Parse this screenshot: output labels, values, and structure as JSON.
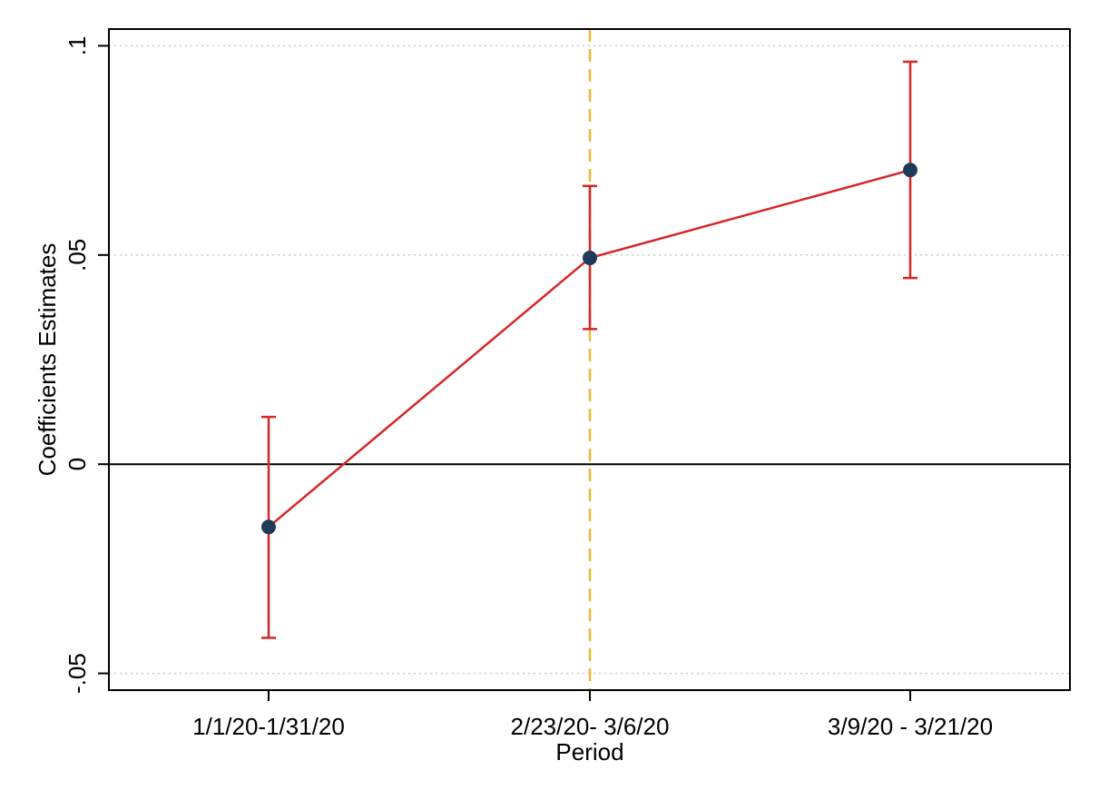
{
  "chart_data": {
    "type": "scatter",
    "title": "",
    "xlabel": "Period",
    "ylabel": "Coefficients Estimates",
    "categories": [
      "1/1/20-1/31/20",
      "2/23/20- 3/6/20",
      "3/9/20 - 3/21/20"
    ],
    "points": [
      {
        "x": "1/1/20-1/31/20",
        "estimate": -0.015,
        "ci_low": -0.0415,
        "ci_high": 0.0113
      },
      {
        "x": "2/23/20- 3/6/20",
        "estimate": 0.0493,
        "ci_low": 0.0323,
        "ci_high": 0.0665
      },
      {
        "x": "3/9/20 - 3/21/20",
        "estimate": 0.0703,
        "ci_low": 0.0445,
        "ci_high": 0.0962
      }
    ],
    "yticks": [
      {
        "value": -0.05,
        "label": "-.05"
      },
      {
        "value": 0,
        "label": "0"
      },
      {
        "value": 0.05,
        "label": ".05"
      },
      {
        "value": 0.1,
        "label": ".1"
      }
    ],
    "ylim": [
      -0.054,
      0.104
    ],
    "reference_line_y": 0,
    "reference_line_x": "2/23/20- 3/6/20",
    "grid": true,
    "legend": false,
    "colors": {
      "line": "#d62728",
      "ci": "#d62728",
      "marker": "#1f3b5a",
      "vertical_line": "#f0b732",
      "zero_line": "#000000",
      "grid": "#c8c8c8"
    }
  }
}
